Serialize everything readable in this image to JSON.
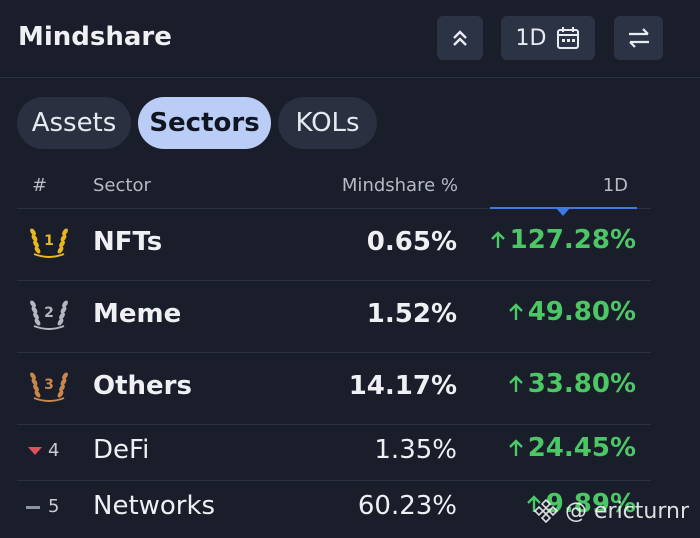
{
  "header": {
    "title": "Mindshare",
    "period_button": "1D"
  },
  "tabs": [
    "Assets",
    "Sectors",
    "KOLs"
  ],
  "table": {
    "columns": [
      "#",
      "Sector",
      "Mindshare %",
      "1D"
    ],
    "rows": [
      [
        "1",
        "NFTs",
        "0.65%",
        "127.28%"
      ],
      [
        "2",
        "Meme",
        "1.52%",
        "49.80%"
      ],
      [
        "3",
        "Others",
        "14.17%",
        "33.80%"
      ],
      [
        "4",
        "DeFi",
        "1.35%",
        "24.45%"
      ],
      [
        "5",
        "Networks",
        "60.23%",
        "9.89%"
      ]
    ]
  },
  "watermark": "@ ericturnr"
}
